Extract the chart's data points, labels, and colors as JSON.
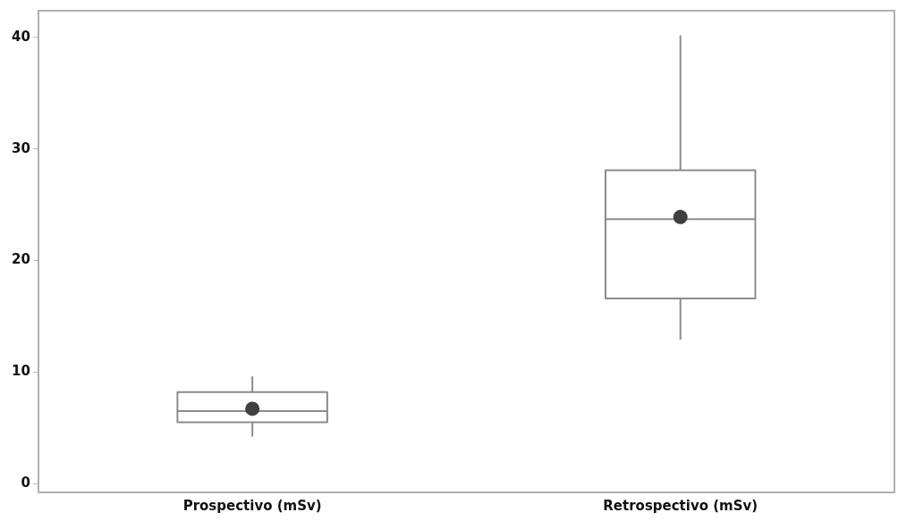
{
  "chart_data": {
    "type": "box",
    "categories": [
      "Prospectivo (mSv)",
      "Retrospectivo (mSv)"
    ],
    "series": [
      {
        "color": "#8c8c8c",
        "boxes": [
          {
            "low": 4.2,
            "q1": 5.5,
            "median": 6.5,
            "q3": 8.2,
            "high": 9.6,
            "mean": 6.7
          },
          {
            "low": 12.9,
            "q1": 16.6,
            "median": 23.7,
            "q3": 28.1,
            "high": 40.2,
            "mean": 23.9
          }
        ]
      }
    ],
    "ylim": [
      -0.8,
      42.4
    ],
    "yticks": [
      0,
      10,
      20,
      30,
      40
    ],
    "grid": false,
    "legend": false
  }
}
